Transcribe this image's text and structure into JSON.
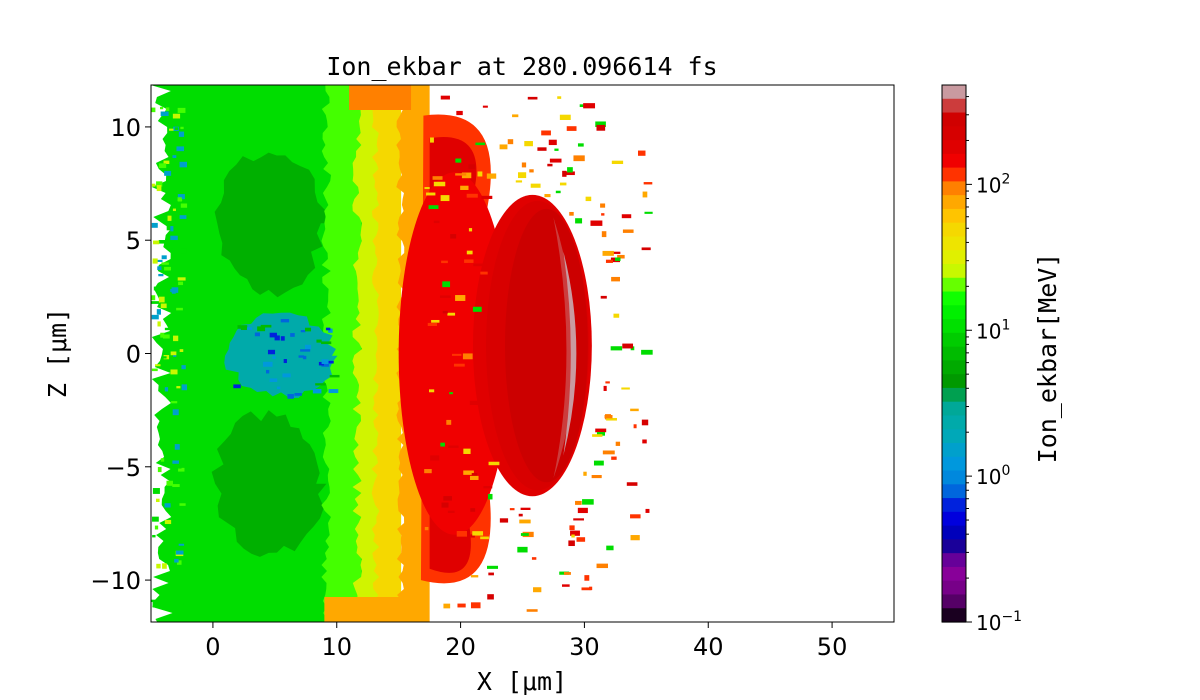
{
  "chart_data": {
    "type": "heatmap",
    "title": "Ion_ekbar at 280.096614 fs",
    "xlabel": "X  [μm]",
    "ylabel": "Z  [μm]",
    "xlim": [
      -5,
      55
    ],
    "ylim": [
      -11.85,
      11.85
    ],
    "xticks": [
      0,
      10,
      20,
      30,
      40,
      50
    ],
    "yticks": [
      -10,
      -5,
      0,
      5,
      10
    ],
    "xtick_labels": [
      "0",
      "10",
      "20",
      "30",
      "40",
      "50"
    ],
    "ytick_labels": [
      "−10",
      "−5",
      "0",
      "5",
      "10"
    ],
    "colorbar": {
      "label": "Ion_ekbar[MeV]",
      "scale": "log",
      "range": [
        0.1,
        480
      ],
      "ticks": [
        0.1,
        1,
        10,
        100
      ],
      "tick_bases": [
        "10",
        "10",
        "10",
        "10"
      ],
      "tick_exponents": [
        "−1",
        "0",
        "1",
        "2"
      ],
      "levels_colors_top_to_bottom": [
        "#c99aa0",
        "#cc3c3c",
        "#d00000",
        "#d60000",
        "#e00000",
        "#f00000",
        "#ff3300",
        "#ff8000",
        "#ffa800",
        "#ffc400",
        "#f5d800",
        "#eee400",
        "#e0f000",
        "#c8f800",
        "#66ff00",
        "#10ff00",
        "#00f000",
        "#00e000",
        "#00cc00",
        "#00bb00",
        "#00aa00",
        "#009900",
        "#00a050",
        "#00a898",
        "#00aaaa",
        "#00a8b8",
        "#00a0cc",
        "#0098dd",
        "#0088dd",
        "#0066dd",
        "#0022dd",
        "#0000dd",
        "#0000bb",
        "#1a0099",
        "#660099",
        "#880099",
        "#770088",
        "#550066",
        "#1a0020"
      ]
    },
    "regions": [
      {
        "name": "green-plasma",
        "x": [
          -4.5,
          14
        ],
        "z": [
          -11.85,
          11.85
        ],
        "value_mev": 10,
        "color": "#00dd00"
      },
      {
        "name": "dark-green-upper",
        "x": [
          0,
          9
        ],
        "z": [
          2.5,
          9
        ],
        "value_mev": 6,
        "color": "#00b000"
      },
      {
        "name": "dark-green-lower",
        "x": [
          0,
          9
        ],
        "z": [
          -9,
          -2.5
        ],
        "value_mev": 6,
        "color": "#00b000"
      },
      {
        "name": "light-green-band",
        "x": [
          9,
          12
        ],
        "z": [
          -11.85,
          11.85
        ],
        "value_mev": 18,
        "color": "#44ff00"
      },
      {
        "name": "yellow-green-band",
        "x": [
          11.5,
          13.5
        ],
        "z": [
          -11.85,
          11.85
        ],
        "value_mev": 30,
        "color": "#d0f400"
      },
      {
        "name": "yellow-band",
        "x": [
          13,
          15.2
        ],
        "z": [
          -11.85,
          11.85
        ],
        "value_mev": 50,
        "color": "#f5d800"
      },
      {
        "name": "cold-core",
        "x": [
          1,
          10
        ],
        "z": [
          -2,
          1.8
        ],
        "value_mev": 1.5,
        "color": "#00aaaa"
      },
      {
        "name": "orange-band",
        "x": [
          15,
          17.5
        ],
        "z": [
          -11.85,
          11.85
        ],
        "value_mev": 90,
        "color": "#ffa800"
      },
      {
        "name": "red-orange-shell",
        "x": [
          16.8,
          22
        ],
        "z": [
          -10,
          10.5
        ],
        "value_mev": 150,
        "color": "#ff3300"
      },
      {
        "name": "hot-bubble",
        "x": [
          21,
          30.6
        ],
        "z": [
          -6.3,
          7
        ],
        "value_mev": 250,
        "color": "#d80000"
      }
    ]
  }
}
